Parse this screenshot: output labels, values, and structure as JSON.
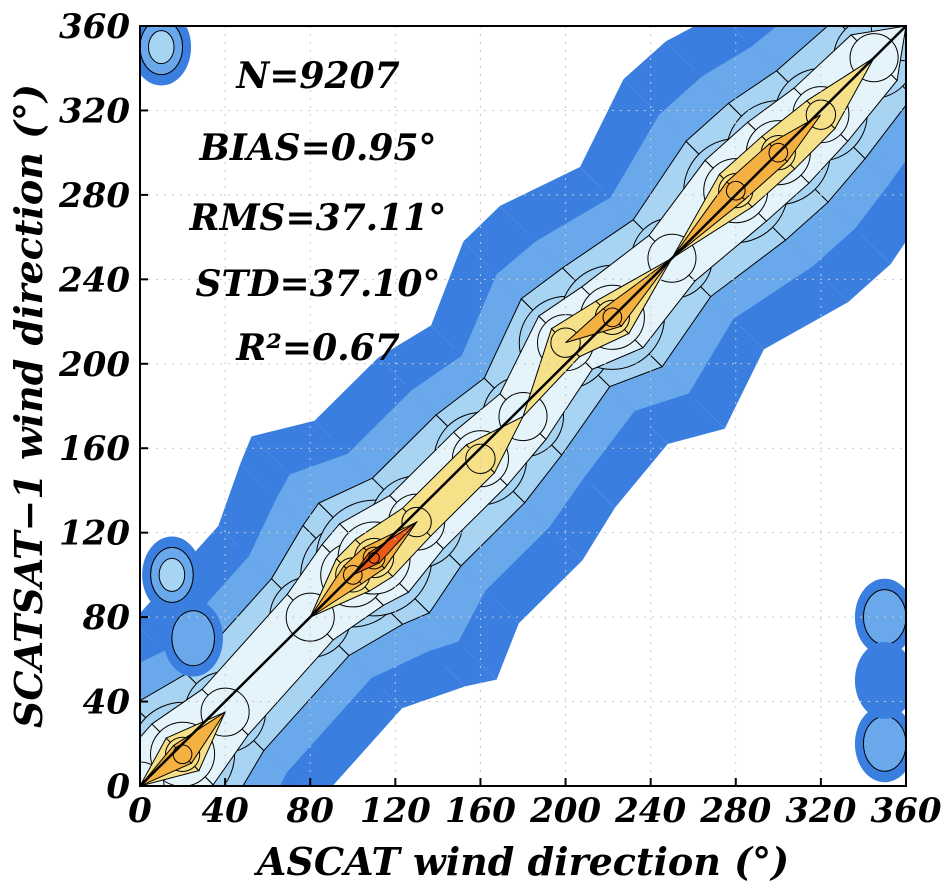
{
  "chart_data": {
    "type": "heatmap",
    "subtype": "filled-contour density plot",
    "xlabel": "ASCAT wind direction (°)",
    "ylabel": "SCATSAT−1 wind direction (°)",
    "xlim": [
      0,
      360
    ],
    "ylim": [
      0,
      360
    ],
    "xticks": [
      "0",
      "40",
      "80",
      "120",
      "160",
      "200",
      "240",
      "280",
      "320",
      "360"
    ],
    "yticks": [
      "0",
      "40",
      "80",
      "120",
      "160",
      "200",
      "240",
      "280",
      "320",
      "360"
    ],
    "xtick_values": [
      0,
      40,
      80,
      120,
      160,
      200,
      240,
      280,
      320,
      360
    ],
    "ytick_values": [
      0,
      40,
      80,
      120,
      160,
      200,
      240,
      280,
      320,
      360
    ],
    "grid": true,
    "reference_line": {
      "name": "1:1 line",
      "x": [
        0,
        360
      ],
      "y": [
        0,
        360
      ]
    },
    "annotations": [
      {
        "text": "N=9207"
      },
      {
        "text": "BIAS=0.95°"
      },
      {
        "text": "RMS=37.11°"
      },
      {
        "text": "STD=37.10°"
      },
      {
        "text": "R²=0.67"
      }
    ],
    "colors": {
      "level1": "#3a7fe0",
      "level2": "#6aa8ec",
      "level3": "#a8d4f4",
      "level4": "#e4f4fa",
      "level5": "#f6e088",
      "level6": "#f4b040",
      "level7": "#ec5a1a",
      "contour": "#000000"
    },
    "density_band": {
      "points": [
        {
          "x": 0,
          "y": 0,
          "level": 4
        },
        {
          "x": 20,
          "y": 15,
          "level": 6
        },
        {
          "x": 40,
          "y": 35,
          "level": 4
        },
        {
          "x": 80,
          "y": 80,
          "level": 4
        },
        {
          "x": 100,
          "y": 100,
          "level": 6
        },
        {
          "x": 110,
          "y": 108,
          "level": 7
        },
        {
          "x": 130,
          "y": 125,
          "level": 5
        },
        {
          "x": 160,
          "y": 155,
          "level": 5
        },
        {
          "x": 180,
          "y": 175,
          "level": 4
        },
        {
          "x": 200,
          "y": 210,
          "level": 5
        },
        {
          "x": 222,
          "y": 222,
          "level": 6
        },
        {
          "x": 250,
          "y": 250,
          "level": 4
        },
        {
          "x": 280,
          "y": 282,
          "level": 6
        },
        {
          "x": 300,
          "y": 300,
          "level": 6
        },
        {
          "x": 320,
          "y": 318,
          "level": 5
        },
        {
          "x": 345,
          "y": 345,
          "level": 4
        },
        {
          "x": 360,
          "y": 360,
          "level": 3
        }
      ]
    },
    "secondary_blobs": [
      {
        "x": 10,
        "y": 350,
        "level": 3
      },
      {
        "x": 15,
        "y": 100,
        "level": 3
      },
      {
        "x": 25,
        "y": 70,
        "level": 2
      },
      {
        "x": 350,
        "y": 80,
        "level": 2
      },
      {
        "x": 350,
        "y": 20,
        "level": 2
      },
      {
        "x": 350,
        "y": 50,
        "level": 1
      }
    ]
  }
}
